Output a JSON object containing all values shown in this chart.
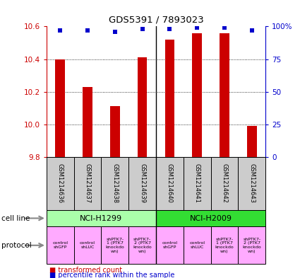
{
  "title": "GDS5391 / 7893023",
  "samples": [
    "GSM1214636",
    "GSM1214637",
    "GSM1214638",
    "GSM1214639",
    "GSM1214640",
    "GSM1214641",
    "GSM1214642",
    "GSM1214643"
  ],
  "red_values": [
    10.4,
    10.23,
    10.11,
    10.41,
    10.52,
    10.56,
    10.56,
    9.99
  ],
  "blue_values": [
    97,
    97,
    96,
    98,
    98,
    99,
    99,
    97
  ],
  "ylim": [
    9.8,
    10.6
  ],
  "y2lim": [
    0,
    100
  ],
  "yticks": [
    9.8,
    10.0,
    10.2,
    10.4,
    10.6
  ],
  "y2ticks": [
    0,
    25,
    50,
    75,
    100
  ],
  "y2ticklabels": [
    "0",
    "25",
    "50",
    "75",
    "100%"
  ],
  "red_color": "#cc0000",
  "blue_color": "#0000cc",
  "bar_width": 0.35,
  "cell_line_groups": [
    {
      "label": "NCI-H1299",
      "start": 0,
      "end": 3,
      "color": "#aaffaa"
    },
    {
      "label": "NCI-H2009",
      "start": 4,
      "end": 7,
      "color": "#33dd33"
    }
  ],
  "protocol_labels": [
    "control\nshGFP",
    "control\nshLUC",
    "shPTK7-\n1 (PTK7\nknockdo\nwn)",
    "shPTK7-\n2 (PTK7\nknockdo\nwn)",
    "control\nshGFP",
    "control\nshLUC",
    "shPTK7-\n1 (PTK7\nknockdo\nwn)",
    "shPTK7-\n2 (PTK7\nknockdo\nwn)"
  ],
  "protocol_color": "#ffaaff",
  "cell_line_label": "cell line",
  "protocol_label": "protocol",
  "legend_red": "transformed count",
  "legend_blue": "percentile rank within the sample",
  "sample_box_color": "#cccccc",
  "separator_color": "#000000"
}
